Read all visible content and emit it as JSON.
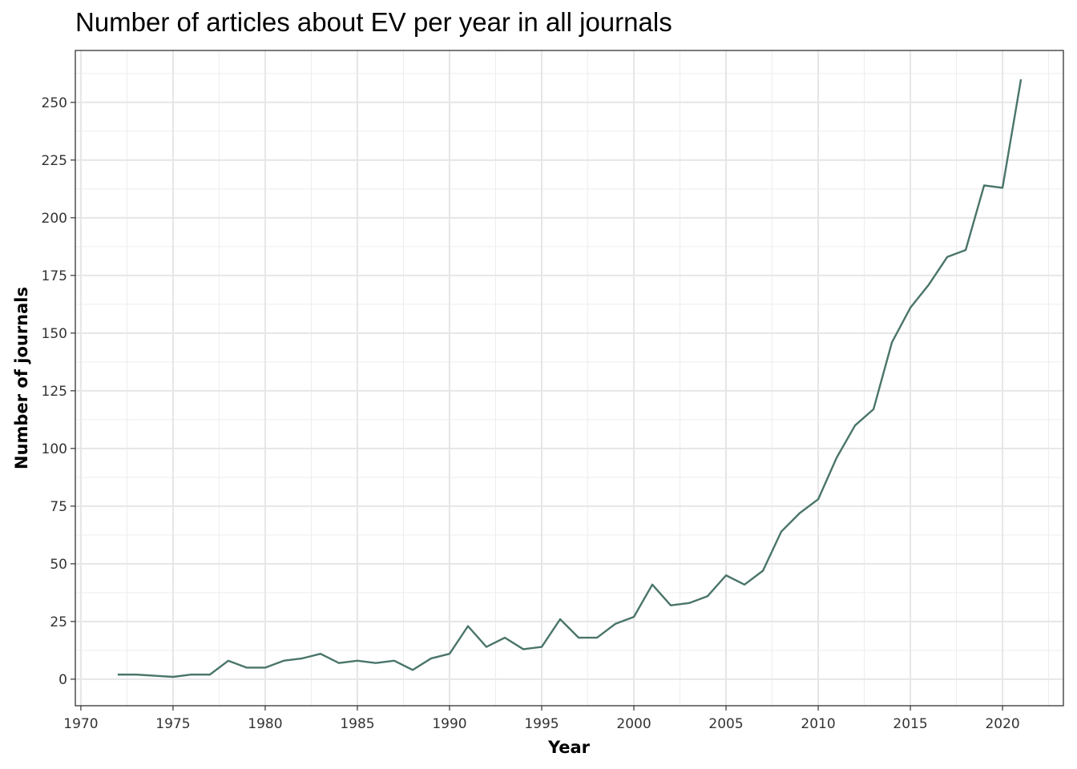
{
  "chart_data": {
    "type": "line",
    "title": "Number of articles about EV per year in all journals",
    "xlabel": "Year",
    "ylabel": "Number of journals",
    "xlim": [
      1969.7,
      2023.3
    ],
    "ylim": [
      -11.5,
      272.5
    ],
    "x_ticks": [
      1970,
      1975,
      1980,
      1985,
      1990,
      1995,
      2000,
      2005,
      2010,
      2015,
      2020
    ],
    "y_ticks": [
      0,
      25,
      50,
      75,
      100,
      125,
      150,
      175,
      200,
      225,
      250
    ],
    "grid": true,
    "line_color": "#4a756a",
    "series": [
      {
        "x": [
          1972,
          1973,
          1974,
          1975,
          1976,
          1977,
          1978,
          1979,
          1980,
          1981,
          1982,
          1983,
          1984,
          1985,
          1986,
          1987,
          1988,
          1989,
          1990,
          1991,
          1992,
          1993,
          1994,
          1995,
          1996,
          1997,
          1998,
          1999,
          2000,
          2001,
          2002,
          2003,
          2004,
          2005,
          2006,
          2007,
          2008,
          2009,
          2010,
          2011,
          2012,
          2013,
          2014,
          2015,
          2016,
          2017,
          2018,
          2019,
          2020,
          2021
        ],
        "values": [
          2,
          2,
          1.5,
          1,
          2,
          2,
          8,
          5,
          5,
          8,
          9,
          11,
          7,
          8,
          7,
          8,
          4,
          9,
          11,
          23,
          14,
          18,
          13,
          14,
          26,
          18,
          18,
          24,
          27,
          41,
          32,
          33,
          36,
          45,
          41,
          47,
          64,
          72,
          78,
          96,
          110,
          117,
          146,
          161,
          171,
          183,
          186,
          214,
          213,
          260
        ]
      }
    ]
  }
}
